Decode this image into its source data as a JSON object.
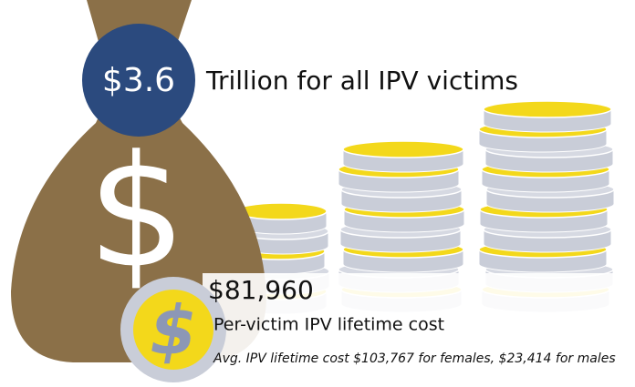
{
  "headline": {
    "figure": "$3.6",
    "text": "Trillion for all IPV victims"
  },
  "per_victim": {
    "figure": "$81,960",
    "label": "Per-victim IPV lifetime cost",
    "note": "Avg. IPV lifetime cost $103,767 for females, $23,414 for males"
  }
}
